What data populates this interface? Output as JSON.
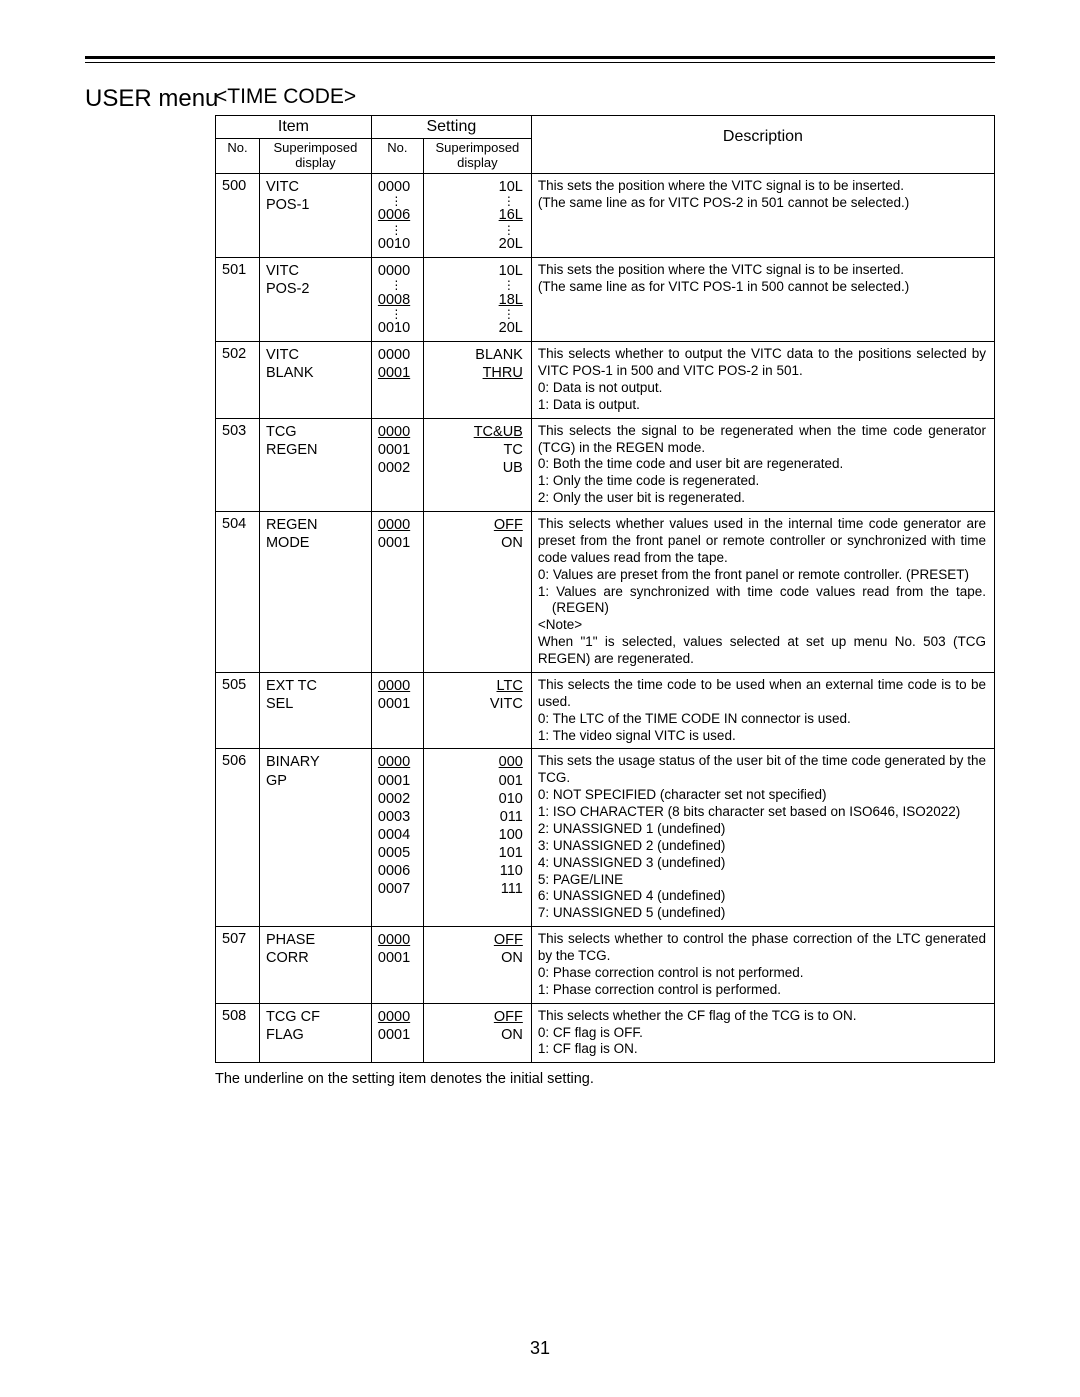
{
  "page": {
    "heading": "USER menu",
    "section": "<TIME CODE>",
    "footnote": "The underline on the setting item denotes the initial setting.",
    "page_number": "31"
  },
  "headers": {
    "item": "Item",
    "setting": "Setting",
    "description": "Description",
    "no": "No.",
    "super": "Superimposed\ndisplay"
  },
  "rows": [
    {
      "no": "500",
      "item": "VITC\nPOS-1",
      "setting_no": [
        {
          "t": "0000"
        },
        {
          "vdots": true
        },
        {
          "t": "0006",
          "u": true
        },
        {
          "vdots": true
        },
        {
          "t": "0010"
        }
      ],
      "setting_disp": [
        {
          "t": "10L"
        },
        {
          "vdots": true
        },
        {
          "t": "16L",
          "u": true
        },
        {
          "vdots": true
        },
        {
          "t": "20L"
        }
      ],
      "desc": [
        {
          "t": "This sets the position where the VITC signal is to be inserted.",
          "just": true
        },
        {
          "t": "(The same line as for VITC POS-2 in 501 cannot be selected.)",
          "just": true
        }
      ]
    },
    {
      "no": "501",
      "item": "VITC\nPOS-2",
      "setting_no": [
        {
          "t": "0000"
        },
        {
          "vdots": true
        },
        {
          "t": "0008",
          "u": true
        },
        {
          "vdots": true
        },
        {
          "t": "0010"
        }
      ],
      "setting_disp": [
        {
          "t": "10L"
        },
        {
          "vdots": true
        },
        {
          "t": "18L",
          "u": true
        },
        {
          "vdots": true
        },
        {
          "t": "20L"
        }
      ],
      "desc": [
        {
          "t": "This sets the position where the VITC signal is to be inserted.",
          "just": true
        },
        {
          "t": "(The same line as for VITC POS-1 in 500 cannot be selected.)",
          "just": true
        }
      ]
    },
    {
      "no": "502",
      "item": "VITC\nBLANK",
      "setting_no": [
        {
          "t": "0000"
        },
        {
          "t": "0001",
          "u": true
        }
      ],
      "setting_disp": [
        {
          "t": "BLANK"
        },
        {
          "t": "THRU",
          "u": true
        }
      ],
      "desc": [
        {
          "t": "This selects whether to output the VITC data to the positions selected by VITC POS-1 in 500 and VITC POS-2 in 501.",
          "just": true
        },
        {
          "t": "0: Data is not output."
        },
        {
          "t": "1: Data is output."
        }
      ]
    },
    {
      "no": "503",
      "item": "TCG\nREGEN",
      "setting_no": [
        {
          "t": "0000",
          "u": true
        },
        {
          "t": "0001"
        },
        {
          "t": "0002"
        }
      ],
      "setting_disp": [
        {
          "t": "TC&UB",
          "u": true
        },
        {
          "t": "TC"
        },
        {
          "t": "UB"
        }
      ],
      "desc": [
        {
          "t": "This selects the signal to be regenerated when the time code generator (TCG) in the REGEN mode.",
          "just": true
        },
        {
          "t": "0: Both the time code and user bit are regenerated."
        },
        {
          "t": "1: Only the time code is regenerated."
        },
        {
          "t": "2: Only the user bit is regenerated."
        }
      ]
    },
    {
      "no": "504",
      "item": "REGEN\nMODE",
      "setting_no": [
        {
          "t": "0000",
          "u": true
        },
        {
          "t": "0001"
        }
      ],
      "setting_disp": [
        {
          "t": "OFF",
          "u": true
        },
        {
          "t": "ON"
        }
      ],
      "desc": [
        {
          "t": "This selects whether values used in the internal time code generator are preset from the front panel or remote controller or synchronized with time code values read from the tape.",
          "just": true
        },
        {
          "t": "0: Values are preset from the front panel or remote controller. (PRESET)",
          "indent": true
        },
        {
          "t": "1: Values are synchronized with time code values read from the tape. (REGEN)",
          "indent": true
        },
        {
          "t": "<Note>"
        },
        {
          "t": "When \"1\" is selected, values selected at set up menu No. 503 (TCG REGEN) are regenerated.",
          "just": true
        }
      ]
    },
    {
      "no": "505",
      "item": "EXT TC\nSEL",
      "setting_no": [
        {
          "t": "0000",
          "u": true
        },
        {
          "t": "0001"
        }
      ],
      "setting_disp": [
        {
          "t": "LTC",
          "u": true
        },
        {
          "t": "VITC"
        }
      ],
      "desc": [
        {
          "t": "This selects the time code to be used when an external time code is to be used.",
          "just": true
        },
        {
          "t": "0: The LTC of the TIME CODE IN connector is used."
        },
        {
          "t": "1: The video signal VITC is used."
        }
      ]
    },
    {
      "no": "506",
      "item": "BINARY\nGP",
      "setting_no": [
        {
          "t": "0000",
          "u": true
        },
        {
          "t": "0001"
        },
        {
          "t": "0002"
        },
        {
          "t": "0003"
        },
        {
          "t": "0004"
        },
        {
          "t": "0005"
        },
        {
          "t": "0006"
        },
        {
          "t": "0007"
        }
      ],
      "setting_disp": [
        {
          "t": "000",
          "u": true
        },
        {
          "t": "001"
        },
        {
          "t": "010"
        },
        {
          "t": "011"
        },
        {
          "t": "100"
        },
        {
          "t": "101"
        },
        {
          "t": "110"
        },
        {
          "t": "111"
        }
      ],
      "desc": [
        {
          "t": "This sets the usage status of the user bit of the time code generated by the TCG.",
          "just": true
        },
        {
          "t": "0: NOT SPECIFIED (character set not specified)"
        },
        {
          "t": "1: ISO CHARACTER (8 bits character set based on ISO646, ISO2022)",
          "indent": true
        },
        {
          "t": "2: UNASSIGNED 1 (undefined)"
        },
        {
          "t": "3: UNASSIGNED 2 (undefined)"
        },
        {
          "t": "4: UNASSIGNED 3 (undefined)"
        },
        {
          "t": "5: PAGE/LINE"
        },
        {
          "t": "6: UNASSIGNED 4 (undefined)"
        },
        {
          "t": "7: UNASSIGNED 5 (undefined)"
        }
      ]
    },
    {
      "no": "507",
      "item": "PHASE\nCORR",
      "setting_no": [
        {
          "t": "0000",
          "u": true
        },
        {
          "t": "0001"
        }
      ],
      "setting_disp": [
        {
          "t": "OFF",
          "u": true
        },
        {
          "t": "ON"
        }
      ],
      "desc": [
        {
          "t": "This selects whether to control the phase correction of the LTC generated by the TCG.",
          "just": true
        },
        {
          "t": "0: Phase correction control is not performed."
        },
        {
          "t": "1: Phase correction control is performed."
        }
      ]
    },
    {
      "no": "508",
      "item": "TCG CF\nFLAG",
      "setting_no": [
        {
          "t": "0000",
          "u": true
        },
        {
          "t": "0001"
        }
      ],
      "setting_disp": [
        {
          "t": "OFF",
          "u": true
        },
        {
          "t": "ON"
        }
      ],
      "desc": [
        {
          "t": "This selects whether the CF flag of the TCG is to ON."
        },
        {
          "t": "0: CF flag is OFF."
        },
        {
          "t": "1: CF flag is ON."
        }
      ]
    }
  ]
}
